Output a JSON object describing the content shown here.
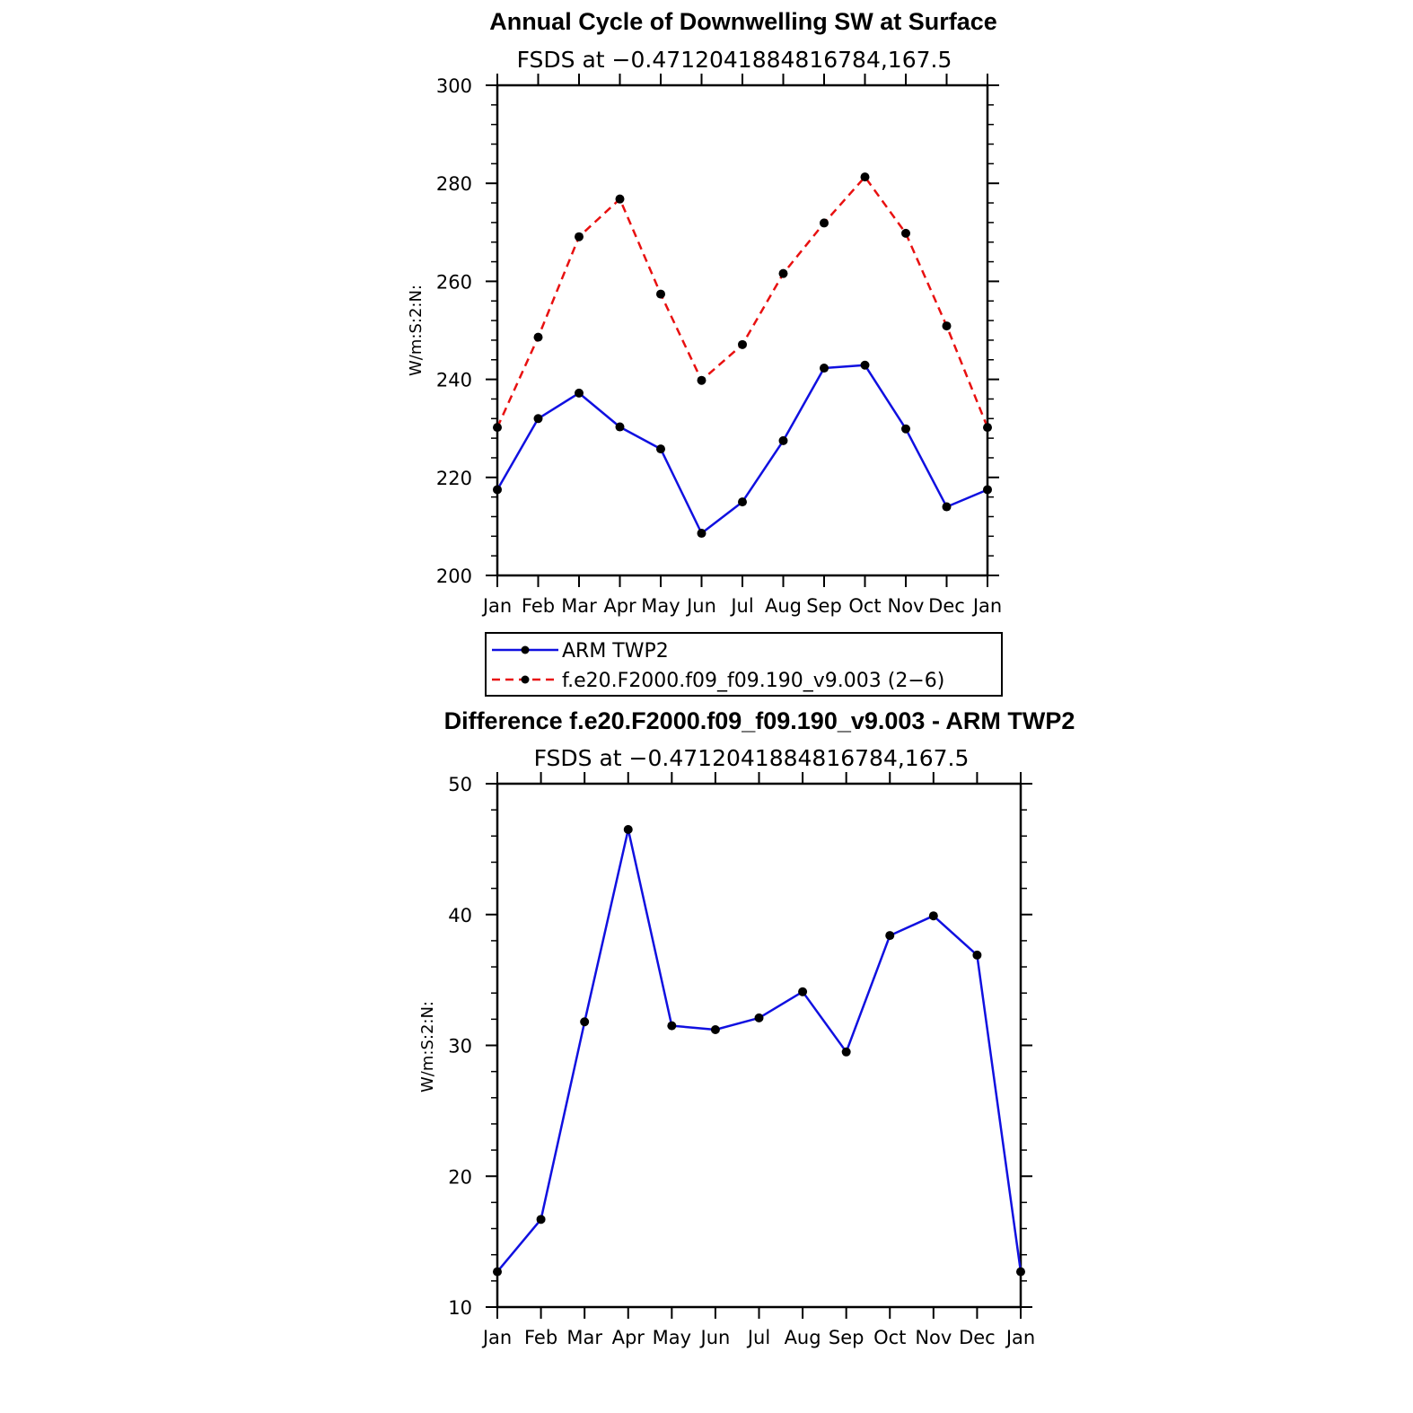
{
  "colors": {
    "arm": "#1010e0",
    "model": "#e81010",
    "marker": "#000000",
    "axis": "#000000"
  },
  "chart_data": [
    {
      "type": "line",
      "title": "Annual Cycle of Downwelling SW at Surface",
      "subtitle": "FSDS at −0.4712041884816784,167.5",
      "ylabel": "W/m:S:2:N:",
      "xlabel": "",
      "ylim": [
        200,
        300
      ],
      "yticks": [
        "200",
        "220",
        "240",
        "260",
        "280",
        "300"
      ],
      "categories": [
        "Jan",
        "Feb",
        "Mar",
        "Apr",
        "May",
        "Jun",
        "Jul",
        "Aug",
        "Sep",
        "Oct",
        "Nov",
        "Dec",
        "Jan"
      ],
      "series": [
        {
          "name": "ARM TWP2",
          "style": "solid",
          "color": "#1010e0",
          "values": [
            217.5,
            232,
            237.2,
            230.3,
            225.8,
            208.6,
            215,
            227.5,
            242.3,
            242.9,
            229.9,
            214,
            217.5
          ]
        },
        {
          "name": "f.e20.F2000.f09_f09.190_v9.003 (2−6)",
          "style": "dashed",
          "color": "#e81010",
          "values": [
            230.2,
            248.6,
            269.1,
            276.8,
            257.4,
            239.8,
            247.1,
            261.6,
            271.9,
            281.3,
            269.8,
            250.9,
            230.2
          ]
        }
      ],
      "legend": {
        "placement": "below"
      }
    },
    {
      "type": "line",
      "title": "Difference f.e20.F2000.f09_f09.190_v9.003 - ARM TWP2",
      "subtitle": "FSDS at −0.4712041884816784,167.5",
      "ylabel": "W/m:S:2:N:",
      "xlabel": "",
      "ylim": [
        10,
        50
      ],
      "yticks": [
        "10",
        "20",
        "30",
        "40",
        "50"
      ],
      "categories": [
        "Jan",
        "Feb",
        "Mar",
        "Apr",
        "May",
        "Jun",
        "Jul",
        "Aug",
        "Sep",
        "Oct",
        "Nov",
        "Dec",
        "Jan"
      ],
      "series": [
        {
          "style": "solid",
          "color": "#1010e0",
          "values": [
            12.7,
            16.7,
            31.8,
            46.5,
            31.5,
            31.2,
            32.1,
            34.1,
            29.5,
            38.4,
            39.9,
            36.9,
            12.7
          ]
        }
      ]
    }
  ]
}
